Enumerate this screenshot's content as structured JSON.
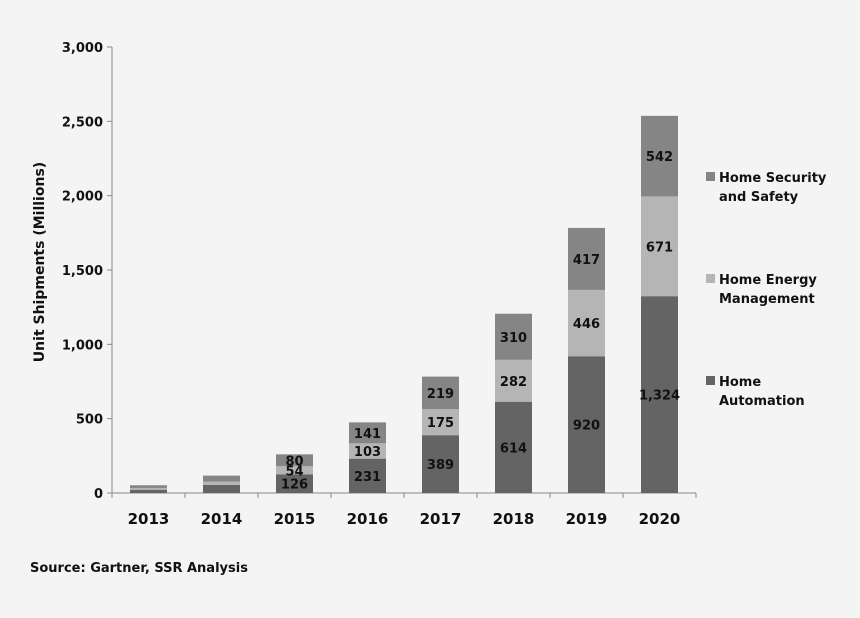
{
  "chart_data": {
    "type": "bar",
    "stacked": true,
    "categories": [
      "2013",
      "2014",
      "2015",
      "2016",
      "2017",
      "2018",
      "2019",
      "2020"
    ],
    "series": [
      {
        "name": "Home Automation",
        "values": [
          22,
          55,
          126,
          231,
          389,
          614,
          920,
          1324
        ],
        "labels": [
          "",
          "",
          "126",
          "231",
          "389",
          "614",
          "920",
          "1,324"
        ],
        "color": "#646464"
      },
      {
        "name": "Home Energy Management",
        "values": [
          12,
          22,
          54,
          103,
          175,
          282,
          446,
          671
        ],
        "labels": [
          "",
          "",
          "54",
          "103",
          "175",
          "282",
          "446",
          "671"
        ],
        "color": "#b5b5b5"
      },
      {
        "name": "Home Security and Safety",
        "values": [
          18,
          40,
          80,
          141,
          219,
          310,
          417,
          542
        ],
        "labels": [
          "",
          "",
          "80",
          "141",
          "219",
          "310",
          "417",
          "542"
        ],
        "color": "#858585"
      }
    ],
    "ylabel": "Unit Shipments (Millions)",
    "xlabel": "",
    "ylim": [
      0,
      3000
    ],
    "yticks": [
      0,
      500,
      1000,
      1500,
      2000,
      2500,
      3000
    ],
    "ytick_labels": [
      "0",
      "500",
      "1,000",
      "1,500",
      "2,000",
      "2,500",
      "3,000"
    ],
    "legend_placement": "right",
    "legend": [
      {
        "lines": [
          "Home Security",
          "and Safety"
        ],
        "color": "#858585"
      },
      {
        "lines": [
          "Home Energy",
          "Management"
        ],
        "color": "#b5b5b5"
      },
      {
        "lines": [
          "Home",
          "Automation"
        ],
        "color": "#646464"
      }
    ],
    "grid": false
  },
  "source": "Source: Gartner, SSR Analysis"
}
